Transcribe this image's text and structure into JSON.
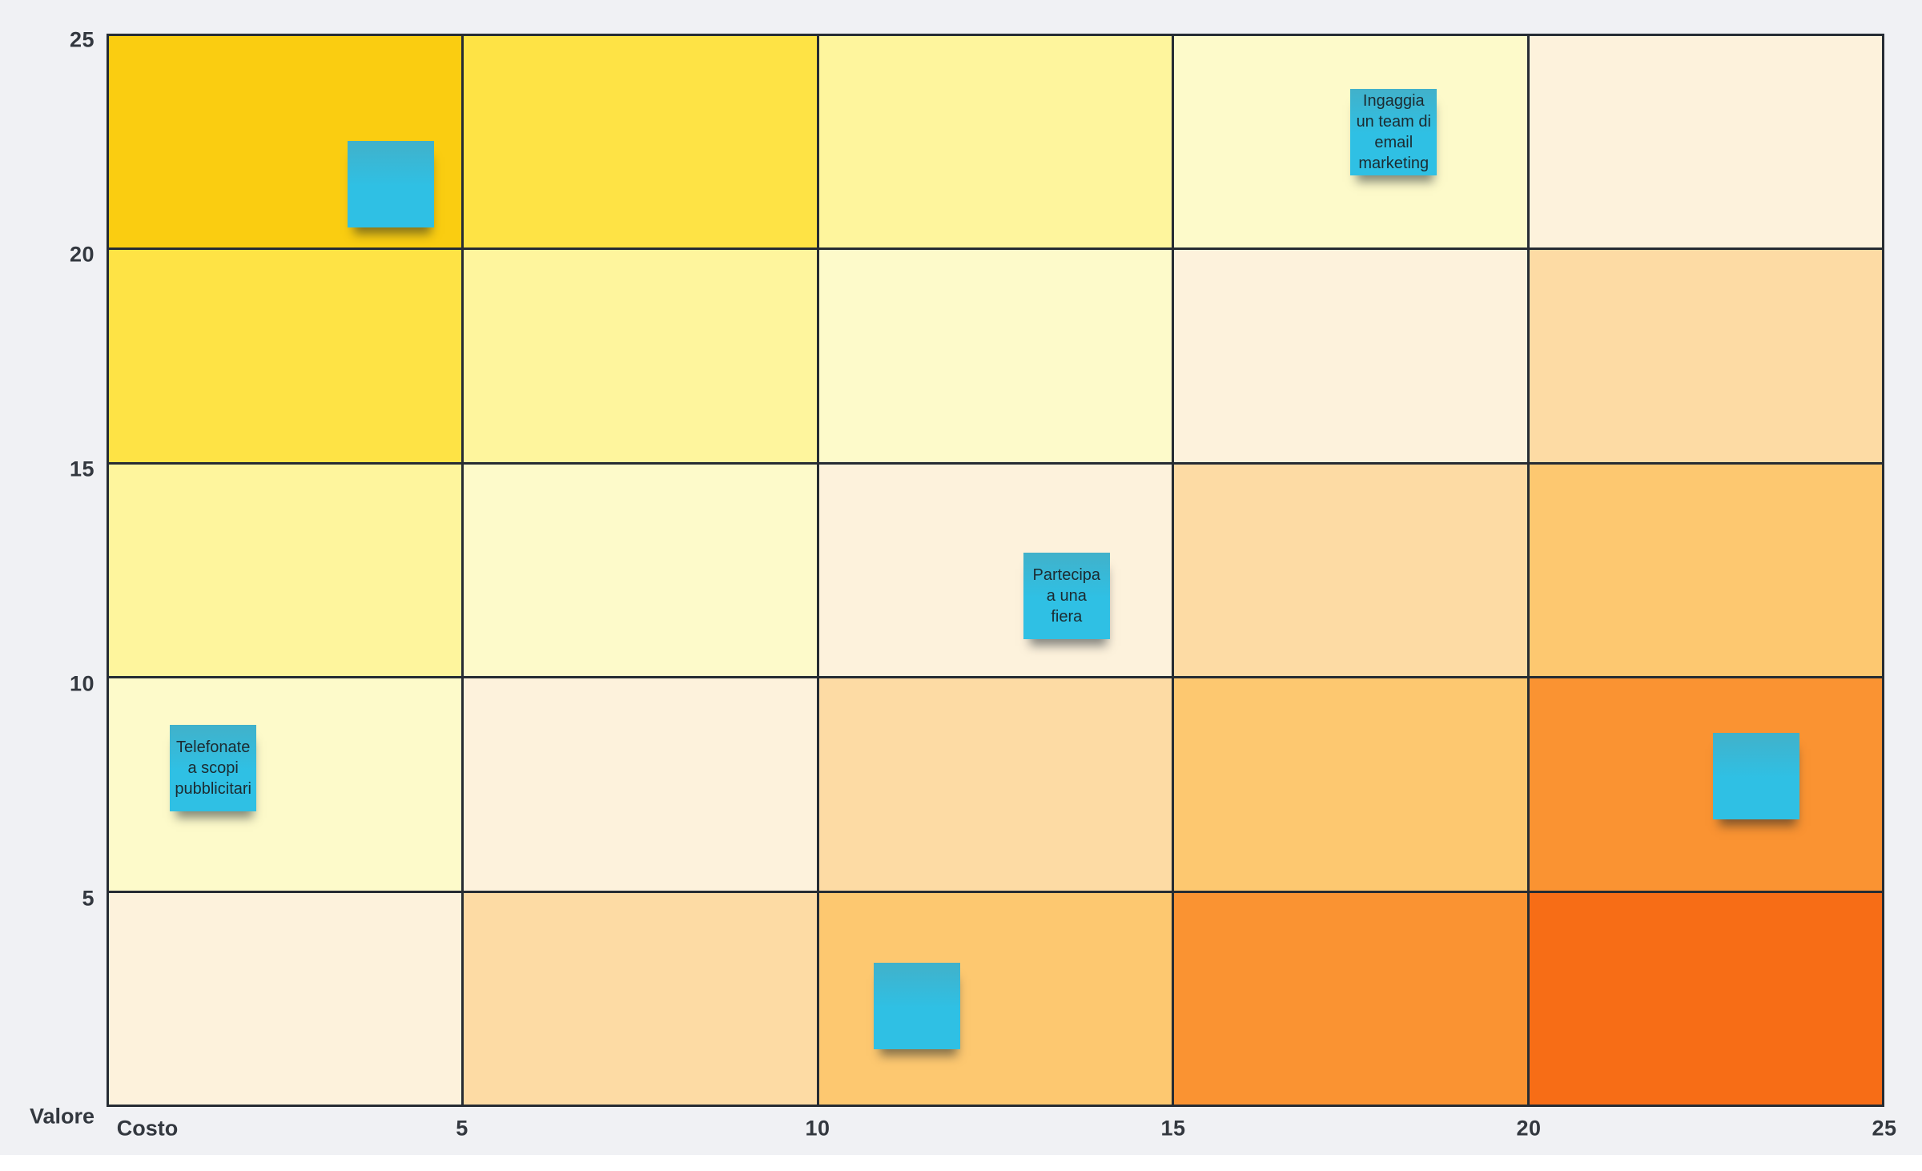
{
  "chart_data": {
    "type": "heatmap",
    "title": "",
    "xlabel": "Costo",
    "ylabel": "Valore",
    "x_ticks": [
      "5",
      "10",
      "15",
      "20",
      "25"
    ],
    "y_ticks": [
      "25",
      "20",
      "15",
      "10",
      "5"
    ],
    "xlim": [
      0,
      25
    ],
    "ylim": [
      0,
      25
    ],
    "grid_rows": 5,
    "grid_cols": 5,
    "grid_on": true,
    "legend": "none",
    "diagonal_colors": [
      "#facd11",
      "#fee345",
      "#fef59d",
      "#fdfaca",
      "#fdf2dc",
      "#fddba4",
      "#fdc870",
      "#fa9332",
      "#f76d16"
    ],
    "notes": [
      {
        "text": "",
        "costo": 4.0,
        "valore": 21.5
      },
      {
        "text": "Ingaggia\nun team di\nemail\nmarketing",
        "costo": 18.1,
        "valore": 22.7
      },
      {
        "text": "Partecipa\na una\nfiera",
        "costo": 13.5,
        "valore": 11.9
      },
      {
        "text": "Telefonate\na scopi\npubblicitari",
        "costo": 1.5,
        "valore": 7.9
      },
      {
        "text": "",
        "costo": 23.2,
        "valore": 7.7
      },
      {
        "text": "",
        "costo": 11.4,
        "valore": 2.35
      }
    ]
  },
  "colors": {
    "background": "#f0f1f4",
    "gridline": "#262c33",
    "label": "#33383f",
    "note_top": "#41b1ca",
    "note_bottom": "#2fc0e4",
    "note_text": "#1c2b31",
    "bottom_strip": "#ffffff"
  }
}
